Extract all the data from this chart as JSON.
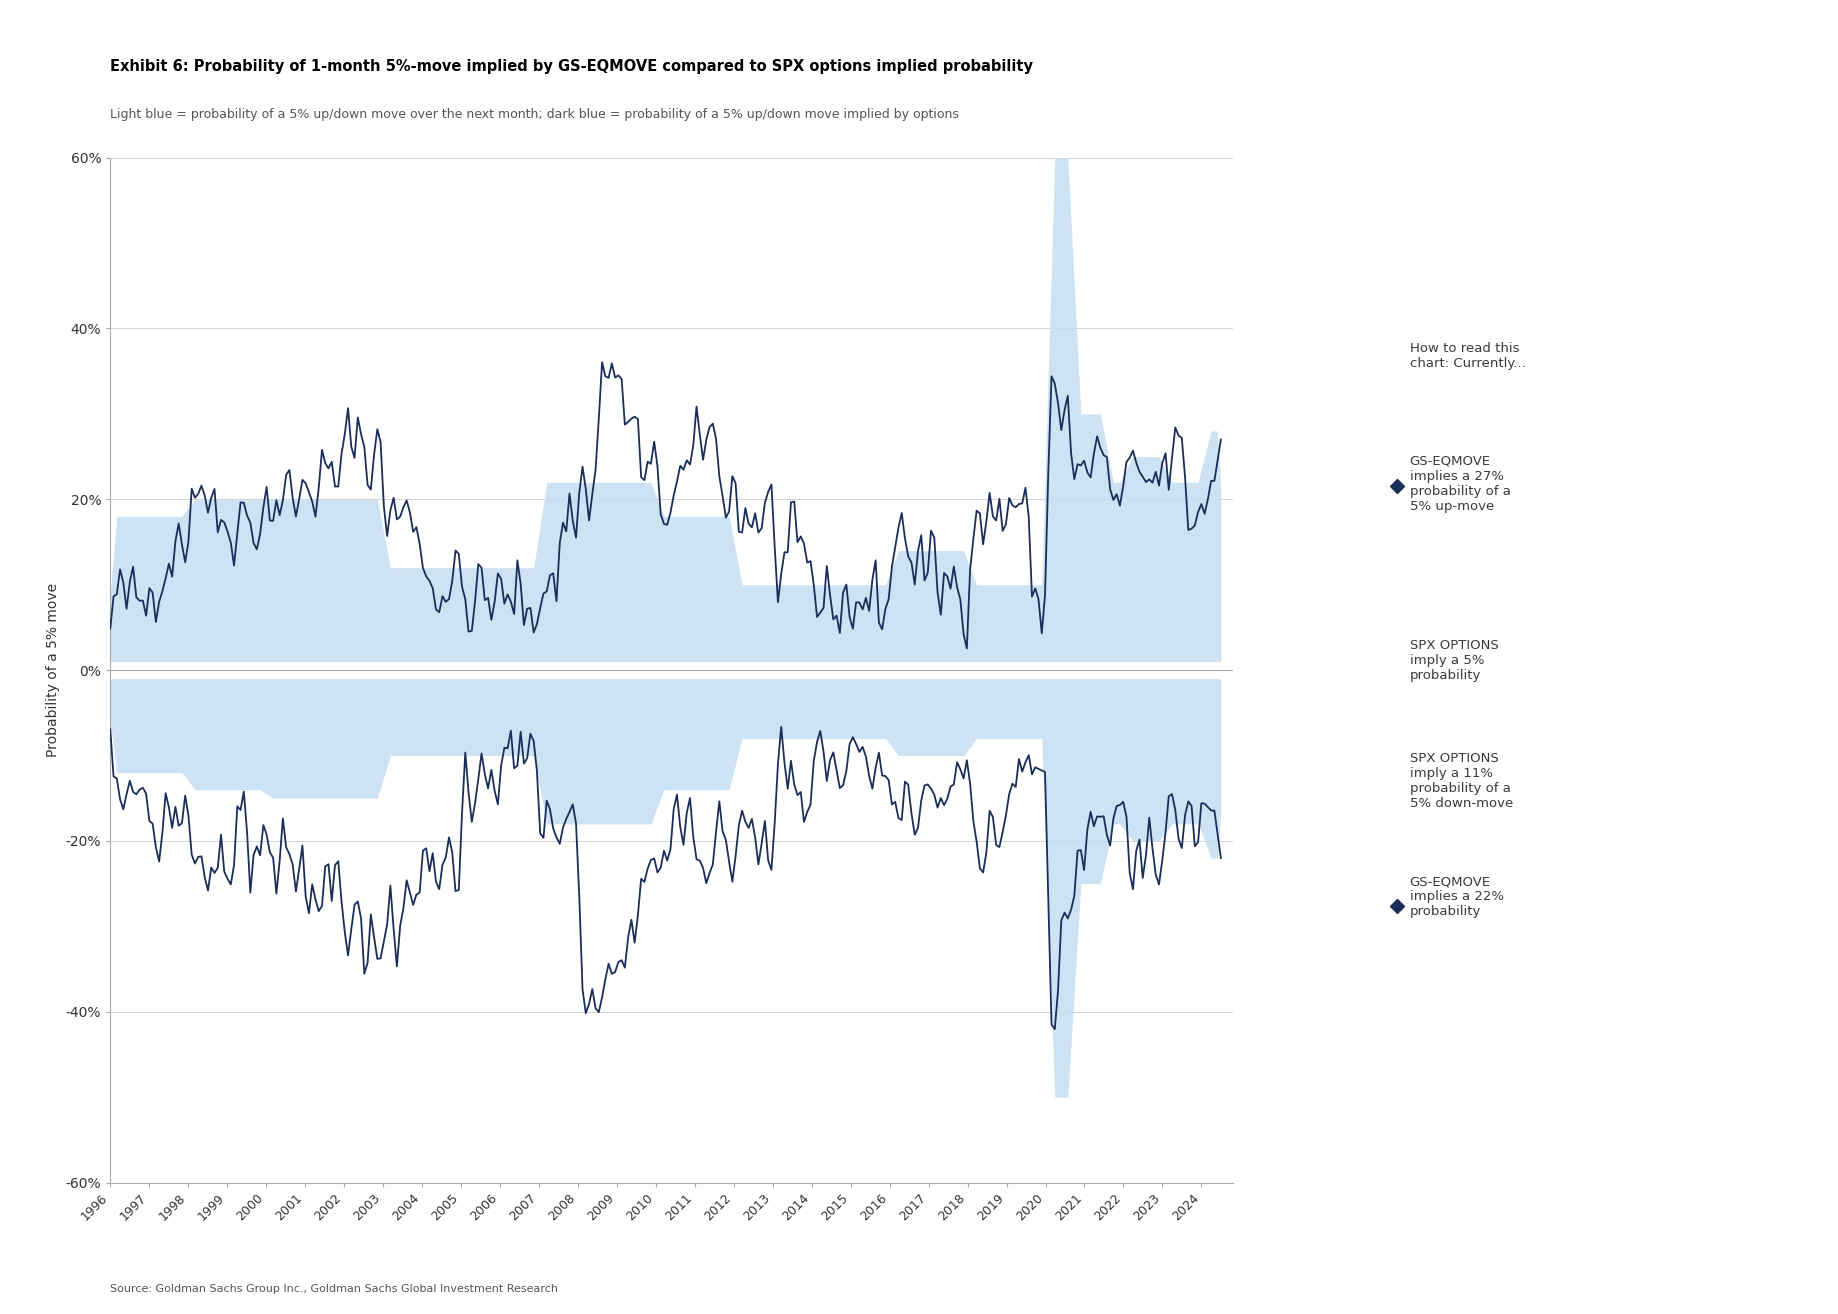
{
  "title": "Exhibit 6: Probability of 1-month 5%-move implied by GS-EQMOVE compared to SPX options implied probability",
  "subtitle": "Light blue = probability of a 5% up/down move over the next month; dark blue = probability of a 5% up/down move implied by options",
  "source": "Source: Goldman Sachs Group Inc., Goldman Sachs Global Investment Research",
  "ylabel": "Probability of a 5% move",
  "ylim": [
    -0.6,
    0.6
  ],
  "yticks": [
    -0.6,
    -0.4,
    -0.2,
    0.0,
    0.2,
    0.4,
    0.6
  ],
  "ytick_labels": [
    "-60%",
    "-40%",
    "-20%",
    "0%",
    "20%",
    "40%",
    "60%"
  ],
  "xtick_years": [
    1996,
    1997,
    1998,
    1999,
    2000,
    2001,
    2002,
    2003,
    2004,
    2005,
    2006,
    2007,
    2008,
    2009,
    2010,
    2011,
    2012,
    2013,
    2014,
    2015,
    2016,
    2017,
    2018,
    2019,
    2020,
    2021,
    2022,
    2023,
    2024
  ],
  "dark_blue": "#1a2e5a",
  "light_blue": "#c5ddf0",
  "annotation_color": "#3a3a3a",
  "bg_color": "#ffffff",
  "plot_bg": "#ffffff",
  "annotations": {
    "how_to_read": "How to read this\nchart: Currently...",
    "gs_up": "GS-EQMOVE\nimplies a 27%\nprobability of a\n5% up-move",
    "spx_up": "SPX OPTIONS\nimply a 5%\nprobability",
    "spx_down": "SPX OPTIONS\nimply a 11%\nprobability of a\n5% down-move",
    "gs_down": "GS-EQMOVE\nimplies a 22%\nprobability"
  }
}
